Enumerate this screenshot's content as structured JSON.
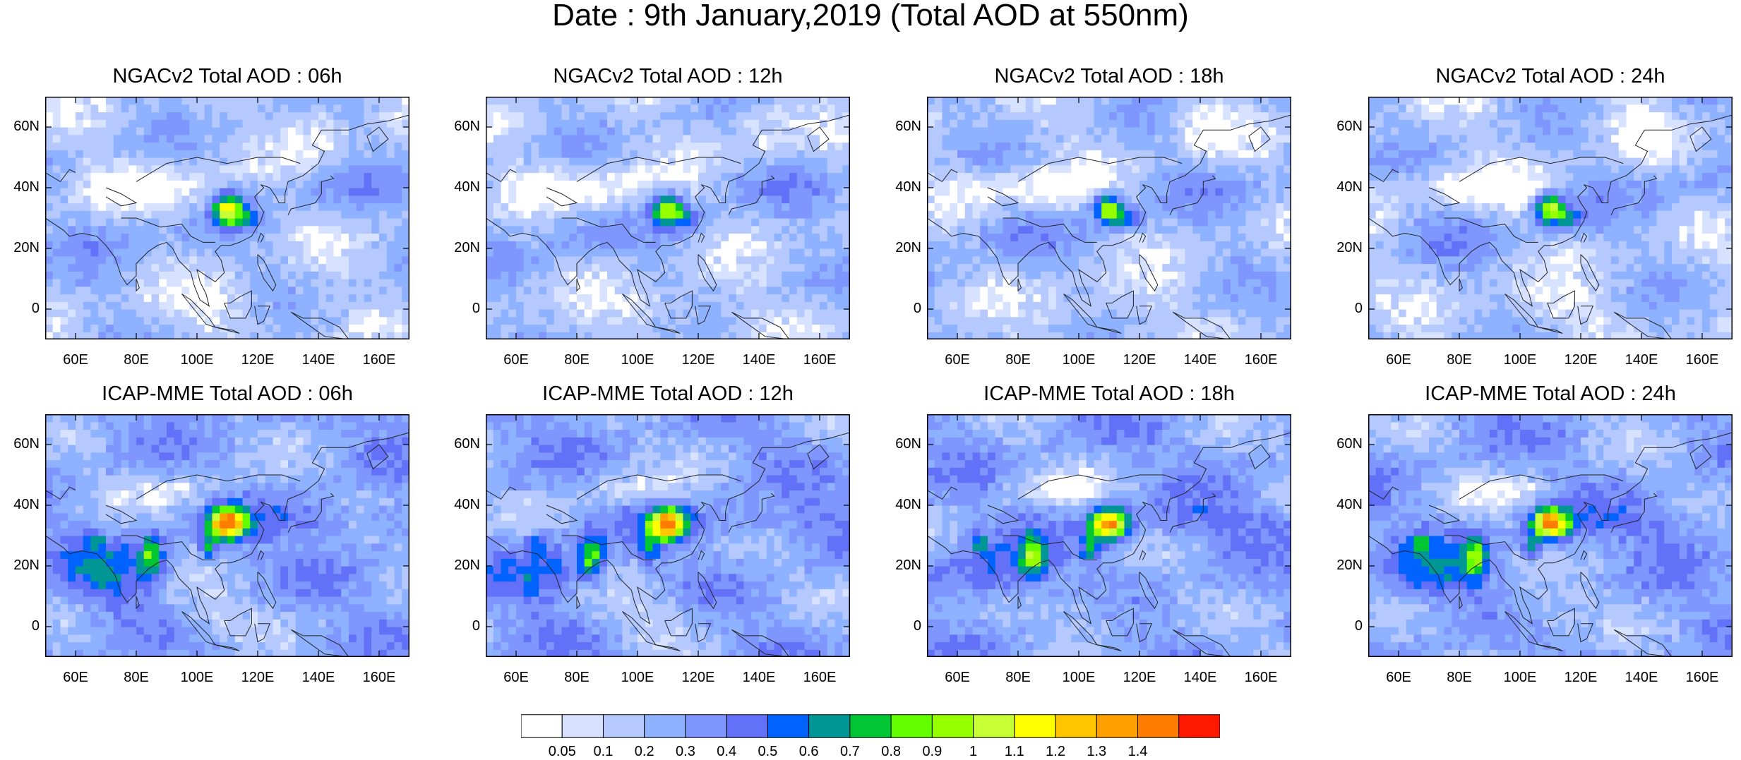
{
  "title": "Date : 9th January,2019 (Total AOD at 550nm)",
  "panels": [
    {
      "title": "NGACv2 Total AOD : 06h",
      "model": "NGACv2",
      "hour": "06h"
    },
    {
      "title": "NGACv2 Total AOD : 12h",
      "model": "NGACv2",
      "hour": "12h"
    },
    {
      "title": "NGACv2 Total AOD : 18h",
      "model": "NGACv2",
      "hour": "18h"
    },
    {
      "title": "NGACv2 Total AOD : 24h",
      "model": "NGACv2",
      "hour": "24h"
    },
    {
      "title": "ICAP-MME Total AOD : 06h",
      "model": "ICAP-MME",
      "hour": "06h"
    },
    {
      "title": "ICAP-MME Total AOD : 12h",
      "model": "ICAP-MME",
      "hour": "12h"
    },
    {
      "title": "ICAP-MME Total AOD : 18h",
      "model": "ICAP-MME",
      "hour": "18h"
    },
    {
      "title": "ICAP-MME Total AOD : 24h",
      "model": "ICAP-MME",
      "hour": "24h"
    }
  ],
  "map_extent": {
    "lon": [
      50,
      170
    ],
    "lat": [
      -10,
      70
    ]
  },
  "lat_ticks": [
    {
      "value": 0,
      "label": "0"
    },
    {
      "value": 20,
      "label": "20N"
    },
    {
      "value": 40,
      "label": "40N"
    },
    {
      "value": 60,
      "label": "60N"
    }
  ],
  "lon_ticks": [
    {
      "value": 60,
      "label": "60E"
    },
    {
      "value": 80,
      "label": "80E"
    },
    {
      "value": 100,
      "label": "100E"
    },
    {
      "value": 120,
      "label": "120E"
    },
    {
      "value": 140,
      "label": "140E"
    },
    {
      "value": 160,
      "label": "160E"
    }
  ],
  "colorbar": {
    "levels": [
      "0.05",
      "0.1",
      "0.2",
      "0.3",
      "0.4",
      "0.5",
      "0.6",
      "0.7",
      "0.8",
      "0.9",
      "1",
      "1.1",
      "1.2",
      "1.3",
      "1.4"
    ],
    "colors": [
      "#ffffff",
      "#d6e2ff",
      "#b5c9ff",
      "#8eb2ff",
      "#7f96ff",
      "#6370f8",
      "#0063ff",
      "#009696",
      "#00c633",
      "#63ff00",
      "#96ff00",
      "#c6ff33",
      "#ffff00",
      "#ffc600",
      "#ffa000",
      "#ff7c00",
      "#ff1900"
    ]
  }
}
